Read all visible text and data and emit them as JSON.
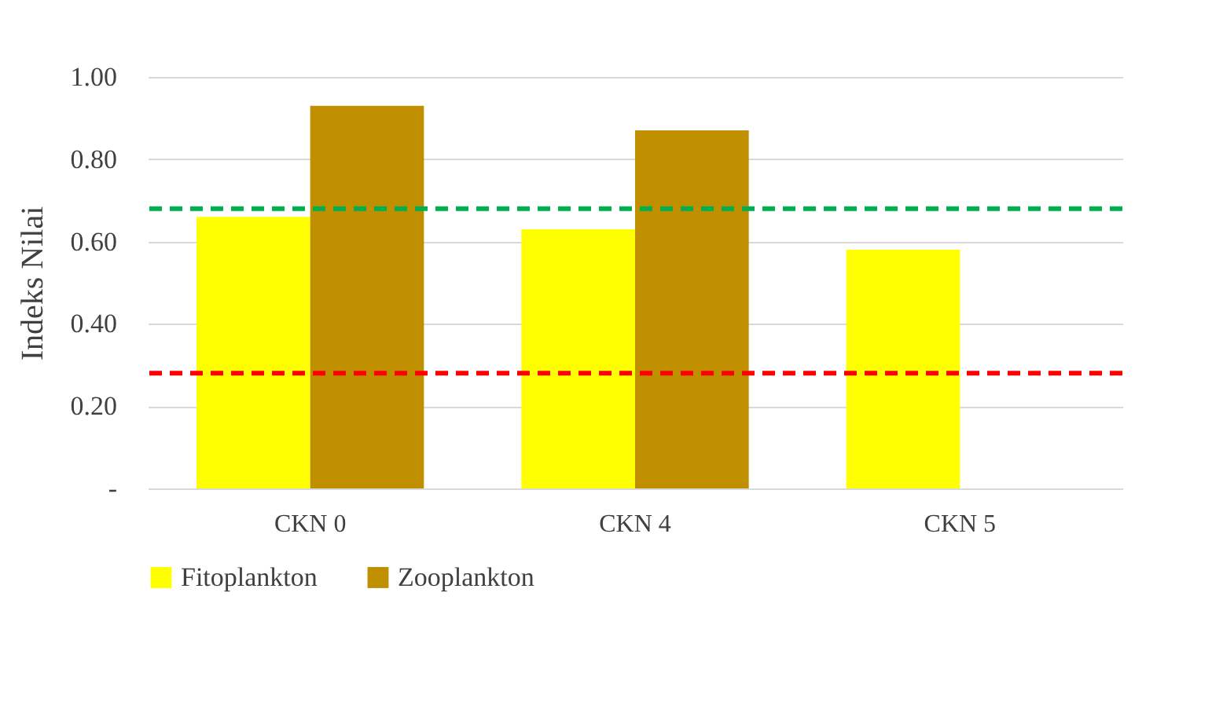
{
  "chart_data": {
    "type": "bar",
    "ylabel": "Indeks Nilai",
    "categories": [
      "CKN 0",
      "CKN 4",
      "CKN 5"
    ],
    "series": [
      {
        "name": "Fitoplankton",
        "color": "#ffff00",
        "values": [
          0.66,
          0.63,
          0.58
        ]
      },
      {
        "name": "Zooplankton",
        "color": "#bf8f00",
        "values": [
          0.93,
          0.87,
          0
        ]
      }
    ],
    "ylim": [
      0,
      1
    ],
    "yticks": [
      {
        "value": 0,
        "label": "-"
      },
      {
        "value": 0.2,
        "label": "0.20"
      },
      {
        "value": 0.4,
        "label": "0.40"
      },
      {
        "value": 0.6,
        "label": "0.60"
      },
      {
        "value": 0.8,
        "label": "0.80"
      },
      {
        "value": 1,
        "label": "1.00"
      }
    ],
    "ref_lines": [
      {
        "axis": "y",
        "value": 0.68,
        "color": "#00b050",
        "line_style": "dashed"
      },
      {
        "axis": "y",
        "value": 0.28,
        "color": "#ff0000",
        "line_style": "dashed"
      }
    ],
    "grid": "y",
    "legend": "bottom"
  }
}
